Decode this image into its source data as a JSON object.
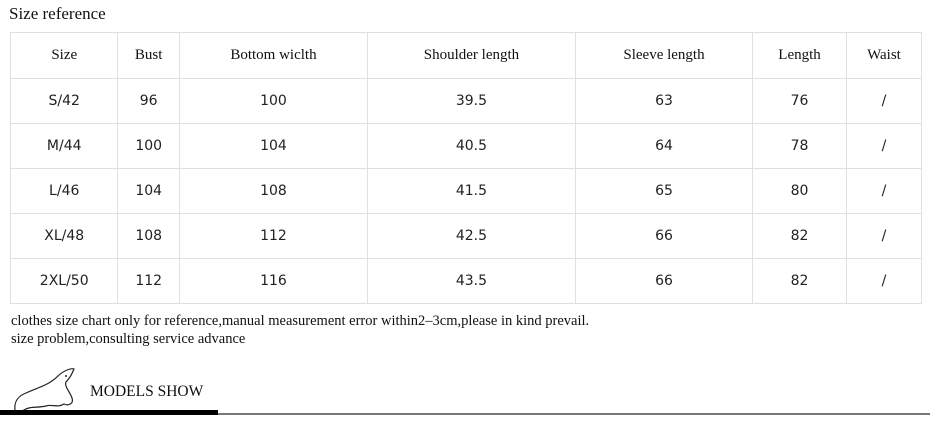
{
  "title": "Size reference",
  "headers": [
    "Size",
    "Bust",
    "Bottom wiclth",
    "Shoulder length",
    "Sleeve length",
    "Length",
    "Waist"
  ],
  "rows": [
    [
      "S/42",
      "96",
      "100",
      "39.5",
      "63",
      "76",
      "/"
    ],
    [
      "M/44",
      "100",
      "104",
      "40.5",
      "64",
      "78",
      "/"
    ],
    [
      "L/46",
      "104",
      "108",
      "41.5",
      "65",
      "80",
      "/"
    ],
    [
      "XL/48",
      "108",
      "112",
      "42.5",
      "66",
      "82",
      "/"
    ],
    [
      "2XL/50",
      "112",
      "116",
      "43.5",
      "66",
      "82",
      "/"
    ]
  ],
  "notes": [
    "clothes size chart only for reference,manual measurement error within2–3cm,please in kind prevail.",
    "size problem,consulting service advance"
  ],
  "section_heading": "MODELS SHOW",
  "logo_icon": "rat-mascot-icon"
}
